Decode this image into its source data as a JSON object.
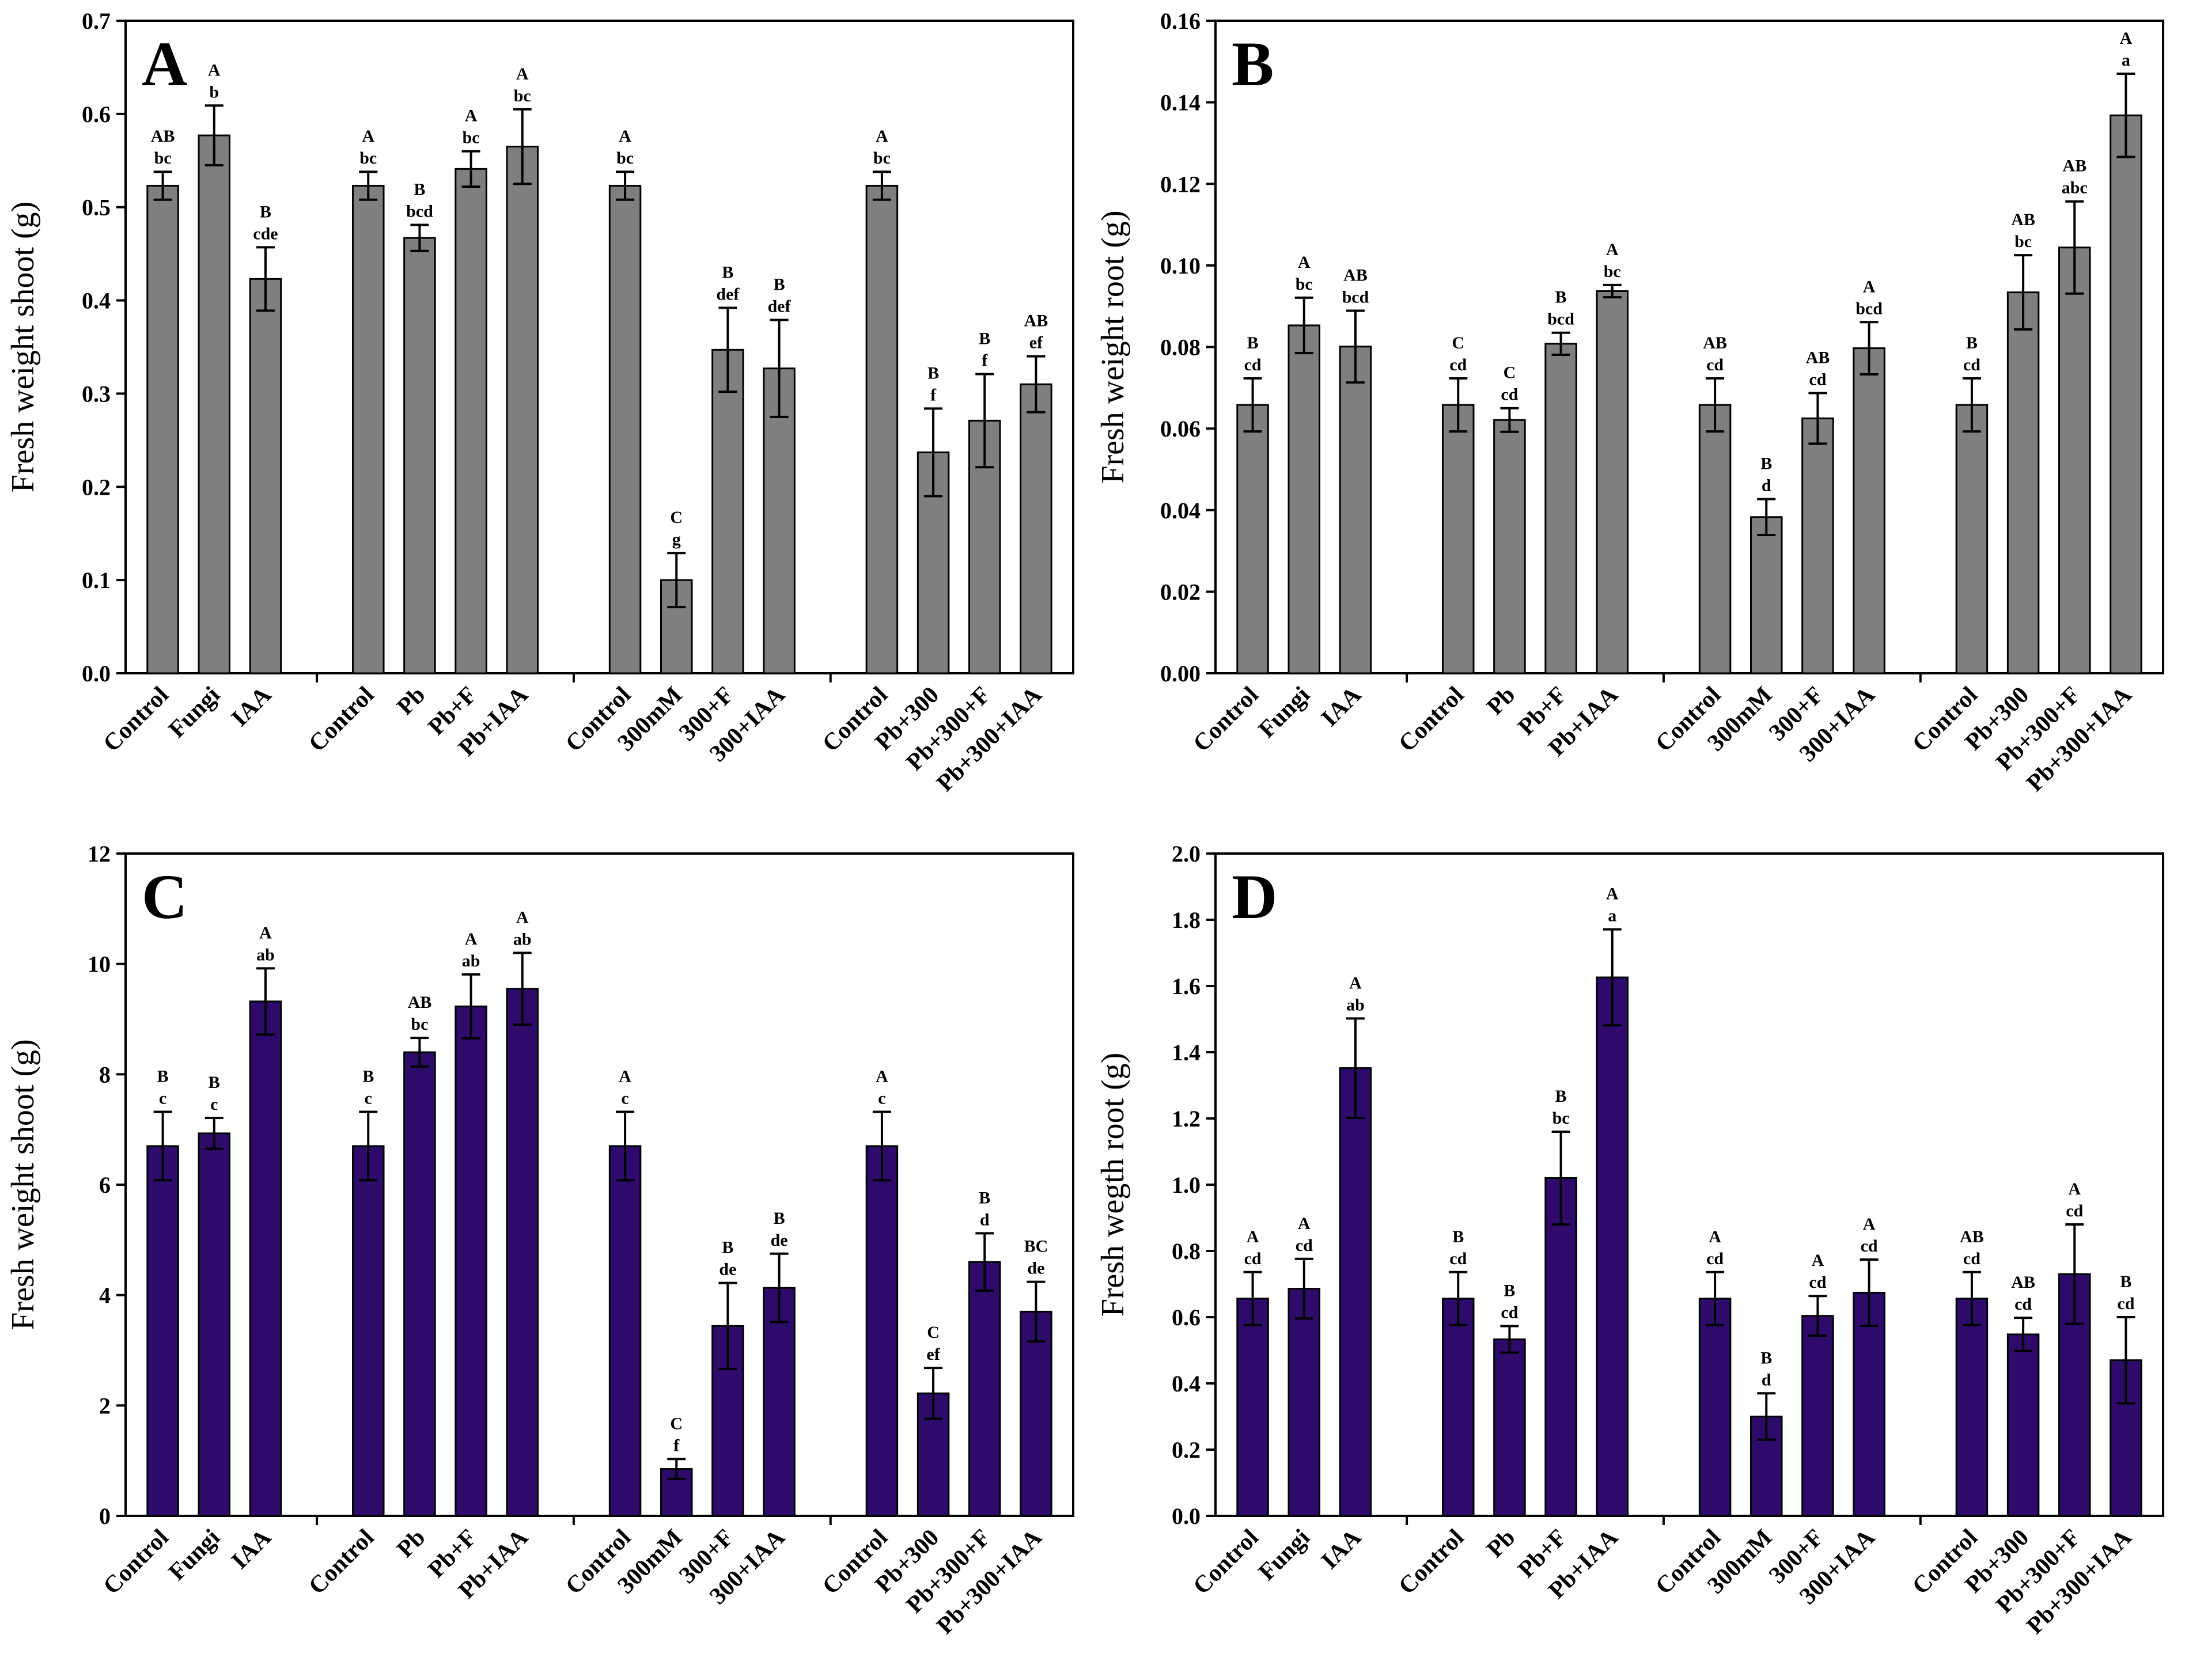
{
  "chart_data": [
    {
      "panel": "A",
      "type": "bar",
      "ylabel": "Fresh weight shoot (g)",
      "ylim": [
        0,
        0.7
      ],
      "yticks": [
        "0.0",
        "0.1",
        "0.2",
        "0.3",
        "0.4",
        "0.5",
        "0.6",
        "0.7"
      ],
      "bar_color": "#7f7f7f",
      "groups": [
        {
          "categories": [
            "Control",
            "Fungi",
            "IAA"
          ],
          "values": [
            0.523,
            0.577,
            0.423
          ],
          "errors": [
            0.015,
            0.032,
            0.034
          ],
          "upper": [
            "AB",
            "A",
            "B"
          ],
          "lower": [
            "bc",
            "b",
            "cde"
          ]
        },
        {
          "categories": [
            "Control",
            "Pb",
            "Pb+F",
            "Pb+IAA"
          ],
          "values": [
            0.523,
            0.467,
            0.541,
            0.565
          ],
          "errors": [
            0.015,
            0.014,
            0.019,
            0.04
          ],
          "upper": [
            "A",
            "B",
            "A",
            "A"
          ],
          "lower": [
            "bc",
            "bcd",
            "bc",
            "bc"
          ]
        },
        {
          "categories": [
            "Control",
            "300mM",
            "300+F",
            "300+IAA"
          ],
          "values": [
            0.523,
            0.1,
            0.347,
            0.327
          ],
          "errors": [
            0.015,
            0.029,
            0.045,
            0.052
          ],
          "upper": [
            "A",
            "C",
            "B",
            "B"
          ],
          "lower": [
            "bc",
            "g",
            "def",
            "def"
          ]
        },
        {
          "categories": [
            "Control",
            "Pb+300",
            "Pb+300+F",
            "Pb+300+IAA"
          ],
          "values": [
            0.523,
            0.237,
            0.271,
            0.31
          ],
          "errors": [
            0.015,
            0.047,
            0.05,
            0.03
          ],
          "upper": [
            "A",
            "B",
            "B",
            "AB"
          ],
          "lower": [
            "bc",
            "f",
            "f",
            "ef"
          ]
        }
      ]
    },
    {
      "panel": "B",
      "type": "bar",
      "ylabel": "Fresh weight root (g)",
      "ylim": [
        0,
        0.16
      ],
      "yticks": [
        "0.00",
        "0.02",
        "0.04",
        "0.06",
        "0.08",
        "0.10",
        "0.12",
        "0.14",
        "0.16"
      ],
      "bar_color": "#7f7f7f",
      "groups": [
        {
          "categories": [
            "Control",
            "Fungi",
            "IAA"
          ],
          "values": [
            0.0658,
            0.0853,
            0.0801
          ],
          "errors": [
            0.0065,
            0.0068,
            0.0088
          ],
          "upper": [
            "B",
            "A",
            "AB"
          ],
          "lower": [
            "cd",
            "bc",
            "bcd"
          ]
        },
        {
          "categories": [
            "Control",
            "Pb",
            "Pb+F",
            "Pb+IAA"
          ],
          "values": [
            0.0658,
            0.0621,
            0.0808,
            0.0937
          ],
          "errors": [
            0.0065,
            0.0029,
            0.0027,
            0.0015
          ],
          "upper": [
            "C",
            "C",
            "B",
            "A"
          ],
          "lower": [
            "cd",
            "cd",
            "bcd",
            "bc"
          ]
        },
        {
          "categories": [
            "Control",
            "300mM",
            "300+F",
            "300+IAA"
          ],
          "values": [
            0.0658,
            0.0383,
            0.0625,
            0.0797
          ],
          "errors": [
            0.0065,
            0.0044,
            0.0062,
            0.0064
          ],
          "upper": [
            "AB",
            "B",
            "AB",
            "A"
          ],
          "lower": [
            "cd",
            "d",
            "cd",
            "bcd"
          ]
        },
        {
          "categories": [
            "Control",
            "Pb+300",
            "Pb+300+F",
            "Pb+300+IAA"
          ],
          "values": [
            0.0658,
            0.0934,
            0.1044,
            0.1368
          ],
          "errors": [
            0.0065,
            0.0091,
            0.0113,
            0.0102
          ],
          "upper": [
            "B",
            "AB",
            "AB",
            "A"
          ],
          "lower": [
            "cd",
            "bc",
            "abc",
            "a"
          ]
        }
      ]
    },
    {
      "panel": "C",
      "type": "bar",
      "ylabel": "Fresh weight shoot (g)",
      "ylim": [
        0,
        12
      ],
      "yticks": [
        "0",
        "2",
        "4",
        "6",
        "8",
        "10",
        "12"
      ],
      "bar_color": "#2e0a6b",
      "groups": [
        {
          "categories": [
            "Control",
            "Fungi",
            "IAA"
          ],
          "values": [
            6.7,
            6.93,
            9.32
          ],
          "errors": [
            0.62,
            0.28,
            0.6
          ],
          "upper": [
            "B",
            "B",
            "A"
          ],
          "lower": [
            "c",
            "c",
            "ab"
          ]
        },
        {
          "categories": [
            "Control",
            "Pb",
            "Pb+F",
            "Pb+IAA"
          ],
          "values": [
            6.7,
            8.4,
            9.23,
            9.55
          ],
          "errors": [
            0.62,
            0.26,
            0.58,
            0.65
          ],
          "upper": [
            "B",
            "AB",
            "A",
            "A"
          ],
          "lower": [
            "c",
            "bc",
            "ab",
            "ab"
          ]
        },
        {
          "categories": [
            "Control",
            "300mM",
            "300+F",
            "300+IAA"
          ],
          "values": [
            6.7,
            0.85,
            3.44,
            4.13
          ],
          "errors": [
            0.62,
            0.18,
            0.78,
            0.62
          ],
          "upper": [
            "A",
            "C",
            "B",
            "B"
          ],
          "lower": [
            "c",
            "f",
            "de",
            "de"
          ]
        },
        {
          "categories": [
            "Control",
            "Pb+300",
            "Pb+300+F",
            "Pb+300+IAA"
          ],
          "values": [
            6.7,
            2.22,
            4.6,
            3.7
          ],
          "errors": [
            0.62,
            0.46,
            0.52,
            0.54
          ],
          "upper": [
            "A",
            "C",
            "B",
            "BC"
          ],
          "lower": [
            "c",
            "ef",
            "d",
            "de"
          ]
        }
      ]
    },
    {
      "panel": "D",
      "type": "bar",
      "ylabel": "Fresh wegth root (g)",
      "ylim": [
        0,
        2.0
      ],
      "yticks": [
        "0.0",
        "0.2",
        "0.4",
        "0.6",
        "0.8",
        "1.0",
        "1.2",
        "1.4",
        "1.6",
        "1.8",
        "2.0"
      ],
      "bar_color": "#2e0a6b",
      "groups": [
        {
          "categories": [
            "Control",
            "Fungi",
            "IAA"
          ],
          "values": [
            0.656,
            0.686,
            1.352
          ],
          "errors": [
            0.08,
            0.09,
            0.15
          ],
          "upper": [
            "A",
            "A",
            "A"
          ],
          "lower": [
            "cd",
            "cd",
            "ab"
          ]
        },
        {
          "categories": [
            "Control",
            "Pb",
            "Pb+F",
            "Pb+IAA"
          ],
          "values": [
            0.656,
            0.533,
            1.02,
            1.626
          ],
          "errors": [
            0.08,
            0.04,
            0.14,
            0.145
          ],
          "upper": [
            "B",
            "B",
            "B",
            "A"
          ],
          "lower": [
            "cd",
            "cd",
            "bc",
            "a"
          ]
        },
        {
          "categories": [
            "Control",
            "300mM",
            "300+F",
            "300+IAA"
          ],
          "values": [
            0.656,
            0.3,
            0.604,
            0.674
          ],
          "errors": [
            0.08,
            0.07,
            0.06,
            0.1
          ],
          "upper": [
            "A",
            "B",
            "A",
            "A"
          ],
          "lower": [
            "cd",
            "d",
            "cd",
            "cd"
          ]
        },
        {
          "categories": [
            "Control",
            "Pb+300",
            "Pb+300+F",
            "Pb+300+IAA"
          ],
          "values": [
            0.656,
            0.548,
            0.73,
            0.47
          ],
          "errors": [
            0.08,
            0.05,
            0.15,
            0.13
          ],
          "upper": [
            "AB",
            "AB",
            "A",
            "B"
          ],
          "lower": [
            "cd",
            "cd",
            "cd",
            "cd"
          ]
        }
      ]
    }
  ]
}
